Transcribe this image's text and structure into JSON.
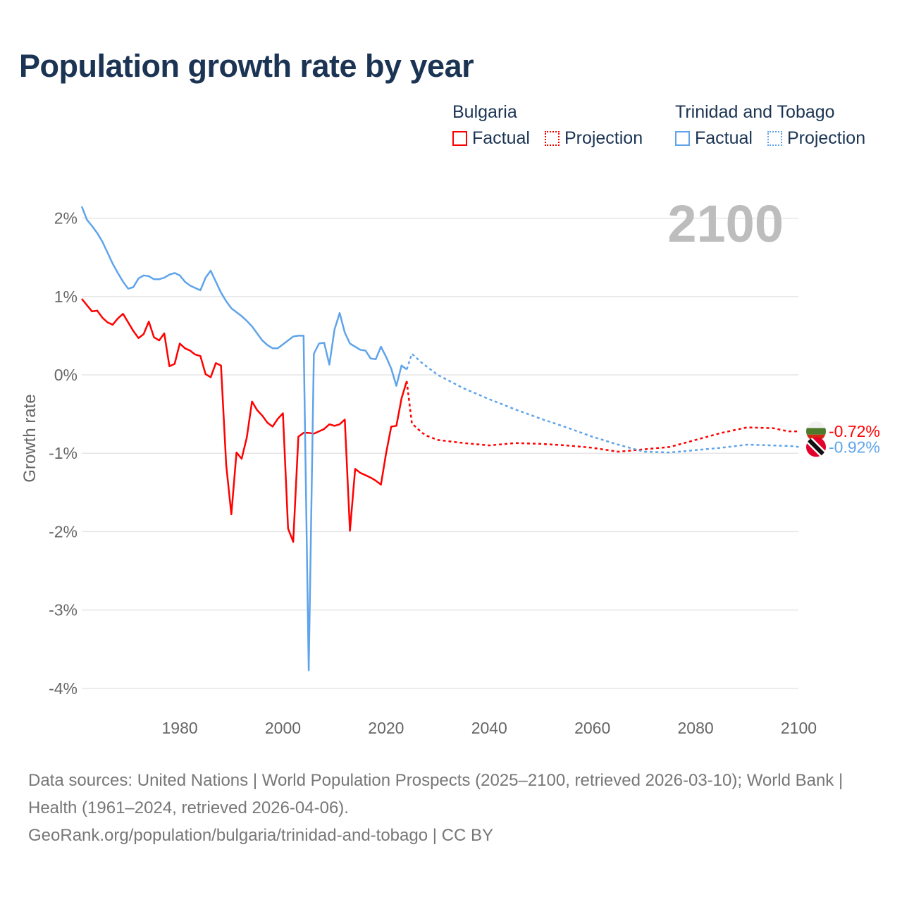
{
  "title": "Population growth rate by year",
  "legend": [
    {
      "country": "Bulgaria",
      "color": "#ff0000",
      "factual": "Factual",
      "projection": "Projection"
    },
    {
      "country": "Trinidad and Tobago",
      "color": "#5fa4ea",
      "factual": "Factual",
      "projection": "Projection"
    }
  ],
  "year_watermark": "2100",
  "footer": {
    "sources": "Data sources: United Nations | World Population Prospects (2025–2100, retrieved 2026-03-10); World Bank | Health (1961–2024, retrieved 2026-04-06).",
    "credit": "GeoRank.org/population/bulgaria/trinidad-and-tobago | CC BY"
  },
  "chart_data": {
    "type": "line",
    "title": "Population growth rate by year",
    "xlabel": "",
    "ylabel": "Growth rate",
    "xlim": [
      1961,
      2100
    ],
    "ylim": [
      -4.2,
      2.2
    ],
    "xticks": [
      1980,
      2000,
      2020,
      2040,
      2060,
      2080,
      2100
    ],
    "yticks": [
      2,
      1,
      0,
      -1,
      -2,
      -3,
      -4
    ],
    "ytick_labels": [
      "2%",
      "1%",
      "0%",
      "-1%",
      "-2%",
      "-3%",
      "-4%"
    ],
    "grid": true,
    "series": [
      {
        "name": "Bulgaria",
        "color": "#ff0000",
        "end_label": "-0.72%",
        "factual": {
          "x": [
            1961,
            1962,
            1963,
            1964,
            1965,
            1966,
            1967,
            1968,
            1969,
            1970,
            1971,
            1972,
            1973,
            1974,
            1975,
            1976,
            1977,
            1978,
            1979,
            1980,
            1981,
            1982,
            1983,
            1984,
            1985,
            1986,
            1987,
            1988,
            1989,
            1990,
            1991,
            1992,
            1993,
            1994,
            1995,
            1996,
            1997,
            1998,
            1999,
            2000,
            2001,
            2002,
            2003,
            2004,
            2005,
            2006,
            2007,
            2008,
            2009,
            2010,
            2011,
            2012,
            2013,
            2014,
            2015,
            2016,
            2017,
            2018,
            2019,
            2020,
            2021,
            2022,
            2023,
            2024
          ],
          "y": [
            0.97,
            0.89,
            0.81,
            0.82,
            0.73,
            0.67,
            0.64,
            0.72,
            0.78,
            0.67,
            0.56,
            0.47,
            0.52,
            0.68,
            0.48,
            0.44,
            0.53,
            0.11,
            0.14,
            0.4,
            0.34,
            0.31,
            0.26,
            0.24,
            0.01,
            -0.03,
            0.15,
            0.12,
            -1.15,
            -1.78,
            -0.99,
            -1.07,
            -0.8,
            -0.34,
            -0.45,
            -0.52,
            -0.61,
            -0.66,
            -0.56,
            -0.49,
            -1.96,
            -2.13,
            -0.79,
            -0.74,
            -0.74,
            -0.75,
            -0.72,
            -0.69,
            -0.63,
            -0.65,
            -0.63,
            -0.57,
            -1.99,
            -1.2,
            -1.25,
            -1.28,
            -1.31,
            -1.35,
            -1.4,
            -1.0,
            -0.66,
            -0.65,
            -0.3,
            -0.08
          ]
        },
        "projection": {
          "x": [
            2024,
            2025,
            2026,
            2027,
            2028,
            2030,
            2035,
            2040,
            2045,
            2050,
            2055,
            2060,
            2065,
            2070,
            2075,
            2080,
            2085,
            2090,
            2095,
            2098,
            2100
          ],
          "y": [
            -0.08,
            -0.62,
            -0.68,
            -0.74,
            -0.78,
            -0.83,
            -0.87,
            -0.9,
            -0.87,
            -0.88,
            -0.9,
            -0.93,
            -0.98,
            -0.95,
            -0.92,
            -0.83,
            -0.74,
            -0.67,
            -0.68,
            -0.72,
            -0.72
          ]
        }
      },
      {
        "name": "Trinidad and Tobago",
        "color": "#5fa4ea",
        "end_label": "-0.92%",
        "factual": {
          "x": [
            1961,
            1962,
            1963,
            1964,
            1965,
            1966,
            1967,
            1968,
            1969,
            1970,
            1971,
            1972,
            1973,
            1974,
            1975,
            1976,
            1977,
            1978,
            1979,
            1980,
            1981,
            1982,
            1983,
            1984,
            1985,
            1986,
            1987,
            1988,
            1989,
            1990,
            1991,
            1992,
            1993,
            1994,
            1995,
            1996,
            1997,
            1998,
            1999,
            2000,
            2001,
            2002,
            2003,
            2004,
            2005,
            2006,
            2007,
            2008,
            2009,
            2010,
            2011,
            2012,
            2013,
            2014,
            2015,
            2016,
            2017,
            2018,
            2019,
            2020,
            2021,
            2022,
            2023,
            2024
          ],
          "y": [
            2.15,
            1.98,
            1.9,
            1.81,
            1.7,
            1.56,
            1.42,
            1.3,
            1.19,
            1.1,
            1.12,
            1.23,
            1.27,
            1.26,
            1.22,
            1.22,
            1.24,
            1.28,
            1.3,
            1.27,
            1.19,
            1.14,
            1.11,
            1.08,
            1.24,
            1.33,
            1.19,
            1.05,
            0.94,
            0.85,
            0.8,
            0.75,
            0.69,
            0.62,
            0.53,
            0.44,
            0.38,
            0.34,
            0.34,
            0.39,
            0.44,
            0.49,
            0.5,
            0.5,
            -3.77,
            0.27,
            0.4,
            0.41,
            0.13,
            0.58,
            0.79,
            0.54,
            0.4,
            0.36,
            0.32,
            0.31,
            0.21,
            0.2,
            0.36,
            0.23,
            0.08,
            -0.14,
            0.12,
            0.07
          ]
        },
        "projection": {
          "x": [
            2024,
            2025,
            2027,
            2030,
            2035,
            2040,
            2045,
            2050,
            2055,
            2060,
            2065,
            2070,
            2075,
            2080,
            2085,
            2090,
            2095,
            2099,
            2100
          ],
          "y": [
            0.07,
            0.27,
            0.15,
            0.0,
            -0.17,
            -0.31,
            -0.44,
            -0.56,
            -0.67,
            -0.79,
            -0.89,
            -0.98,
            -0.99,
            -0.96,
            -0.93,
            -0.89,
            -0.9,
            -0.91,
            -0.92
          ]
        }
      }
    ]
  }
}
